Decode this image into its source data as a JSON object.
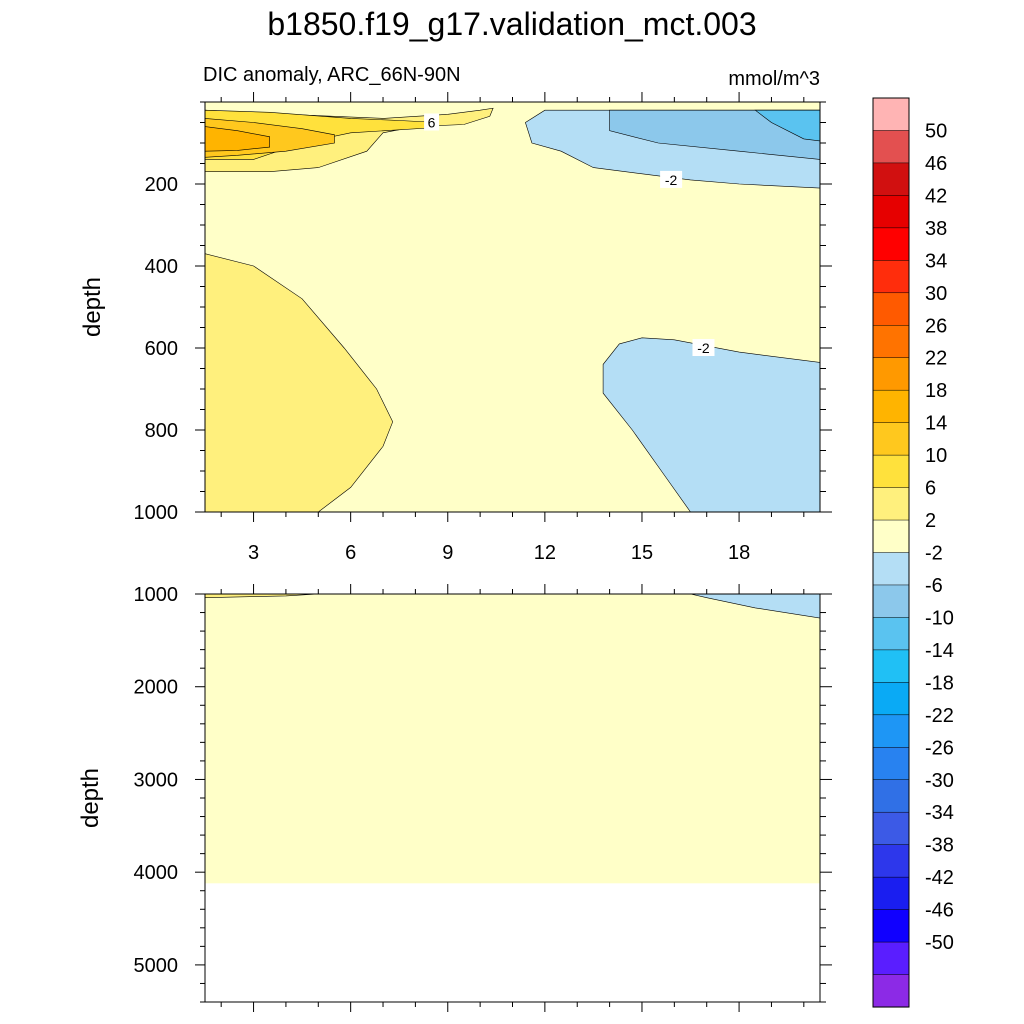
{
  "chart_data": [
    {
      "type": "heatmap",
      "title": "b1850.f19_g17.validation_mct.003",
      "subtitle": "DIC anomaly, ARC_66N-90N",
      "units": "mmol/m^3",
      "ylabel": "depth",
      "xlabel": "",
      "xlim": [
        1.5,
        20.5
      ],
      "ylim": [
        1000,
        0
      ],
      "x_ticks": [
        3,
        6,
        9,
        12,
        15,
        18
      ],
      "y_ticks": [
        200,
        400,
        600,
        800,
        1000
      ],
      "contour_labels": [
        {
          "text": "6",
          "x": 8.5,
          "y": 50
        },
        {
          "text": "-2",
          "x": 15.9,
          "y": 190
        },
        {
          "text": "-2",
          "x": 16.9,
          "y": 600
        }
      ],
      "regions": [
        {
          "level": 2,
          "note": "2 to 6, upper left",
          "points": [
            [
              1.5,
              20
            ],
            [
              4,
              30
            ],
            [
              7,
              40
            ],
            [
              9,
              30
            ],
            [
              10,
              20
            ],
            [
              10.4,
              15
            ],
            [
              10.3,
              35
            ],
            [
              9.5,
              55
            ],
            [
              8,
              60
            ],
            [
              7,
              75
            ],
            [
              6.5,
              120
            ],
            [
              5,
              160
            ],
            [
              3.5,
              170
            ],
            [
              1.5,
              170
            ]
          ]
        },
        {
          "level": 6,
          "points": [
            [
              1.5,
              20
            ],
            [
              3.5,
              25
            ],
            [
              6,
              40
            ],
            [
              7.5,
              45
            ],
            [
              8.7,
              50
            ],
            [
              8.7,
              62
            ],
            [
              6,
              75
            ],
            [
              4.5,
              100
            ],
            [
              3,
              140
            ],
            [
              1.5,
              140
            ]
          ]
        },
        {
          "level": 10,
          "points": [
            [
              1.5,
              40
            ],
            [
              3,
              50
            ],
            [
              4.5,
              65
            ],
            [
              5.5,
              80
            ],
            [
              5.5,
              100
            ],
            [
              4,
              120
            ],
            [
              2.5,
              130
            ],
            [
              1.5,
              135
            ]
          ]
        },
        {
          "level": 14,
          "points": [
            [
              1.5,
              60
            ],
            [
              2.5,
              70
            ],
            [
              3.5,
              85
            ],
            [
              3.5,
              110
            ],
            [
              2.5,
              118
            ],
            [
              1.5,
              120
            ]
          ]
        },
        {
          "level": 2,
          "note": "2 to 6, deep left",
          "points": [
            [
              1.5,
              370
            ],
            [
              3,
              400
            ],
            [
              4.5,
              480
            ],
            [
              5.8,
              600
            ],
            [
              6.8,
              700
            ],
            [
              7.3,
              780
            ],
            [
              7,
              840
            ],
            [
              6,
              940
            ],
            [
              5,
              1000
            ],
            [
              1.5,
              1000
            ]
          ]
        },
        {
          "level": -6,
          "note": "-6 to -2, upper right",
          "points": [
            [
              20.5,
              20
            ],
            [
              12,
              20
            ],
            [
              11.4,
              50
            ],
            [
              11.6,
              100
            ],
            [
              12.5,
              120
            ],
            [
              13.5,
              160
            ],
            [
              15,
              175
            ],
            [
              16.5,
              190
            ],
            [
              18,
              200
            ],
            [
              20.5,
              210
            ]
          ]
        },
        {
          "level": -10,
          "points": [
            [
              20.5,
              20
            ],
            [
              14,
              20
            ],
            [
              14,
              70
            ],
            [
              15.5,
              100
            ],
            [
              18,
              120
            ],
            [
              20.5,
              140
            ]
          ]
        },
        {
          "level": -14,
          "points": [
            [
              20.5,
              20
            ],
            [
              18.5,
              20
            ],
            [
              19,
              50
            ],
            [
              20,
              90
            ],
            [
              20.5,
              95
            ]
          ]
        },
        {
          "level": -6,
          "note": "-6 to -2, deep right",
          "points": [
            [
              20.5,
              635
            ],
            [
              18,
              610
            ],
            [
              16,
              580
            ],
            [
              15,
              575
            ],
            [
              14.3,
              590
            ],
            [
              13.8,
              640
            ],
            [
              13.8,
              710
            ],
            [
              14.7,
              800
            ],
            [
              15.6,
              900
            ],
            [
              16.5,
              1000
            ],
            [
              20.5,
              1000
            ]
          ]
        }
      ]
    },
    {
      "type": "heatmap",
      "xlabel": "",
      "ylabel": "depth",
      "xlim": [
        1.5,
        20.5
      ],
      "ylim": [
        5400,
        1000
      ],
      "y_ticks": [
        1000,
        2000,
        3000,
        4000,
        5000
      ],
      "data_bottom_depth": 4120,
      "regions": [
        {
          "level": 2,
          "note": "2 to 6, top left",
          "points": [
            [
              1.5,
              1000
            ],
            [
              5,
              1000
            ],
            [
              4,
              1020
            ],
            [
              1.5,
              1040
            ]
          ]
        },
        {
          "level": -6,
          "note": "-6 to -2, top right",
          "points": [
            [
              16.5,
              1000
            ],
            [
              20.5,
              1000
            ],
            [
              20.5,
              1260
            ],
            [
              18.5,
              1150
            ],
            [
              17,
              1040
            ]
          ]
        }
      ]
    }
  ],
  "colorbar": {
    "labels": [
      "50",
      "46",
      "42",
      "38",
      "34",
      "30",
      "26",
      "22",
      "18",
      "14",
      "10",
      "6",
      "2",
      "-2",
      "-6",
      "-10",
      "-14",
      "-18",
      "-22",
      "-26",
      "-30",
      "-34",
      "-38",
      "-42",
      "-46",
      "-50"
    ],
    "colors": [
      "#ffb4b4",
      "#e35050",
      "#d11010",
      "#e60000",
      "#ff0000",
      "#ff2d0c",
      "#ff5a00",
      "#ff7300",
      "#ff9900",
      "#ffb400",
      "#ffc81e",
      "#ffe13c",
      "#fff07d",
      "#ffffc8",
      "#b4def5",
      "#8cc8eb",
      "#5ac3f0",
      "#20c0f5",
      "#0aaaf5",
      "#1e96f5",
      "#2882f0",
      "#3070e6",
      "#3c5ae6",
      "#2d37eb",
      "#1a1ef0",
      "#1000ff",
      "#5a1eff",
      "#8c2ae6"
    ],
    "base_color": "#ffffc8",
    "level_colors": {
      "2": "#fff07d",
      "6": "#ffe13c",
      "10": "#ffc81e",
      "14": "#ffb400",
      "-6": "#b4def5",
      "-10": "#8cc8eb",
      "-14": "#5ac3f0"
    }
  }
}
